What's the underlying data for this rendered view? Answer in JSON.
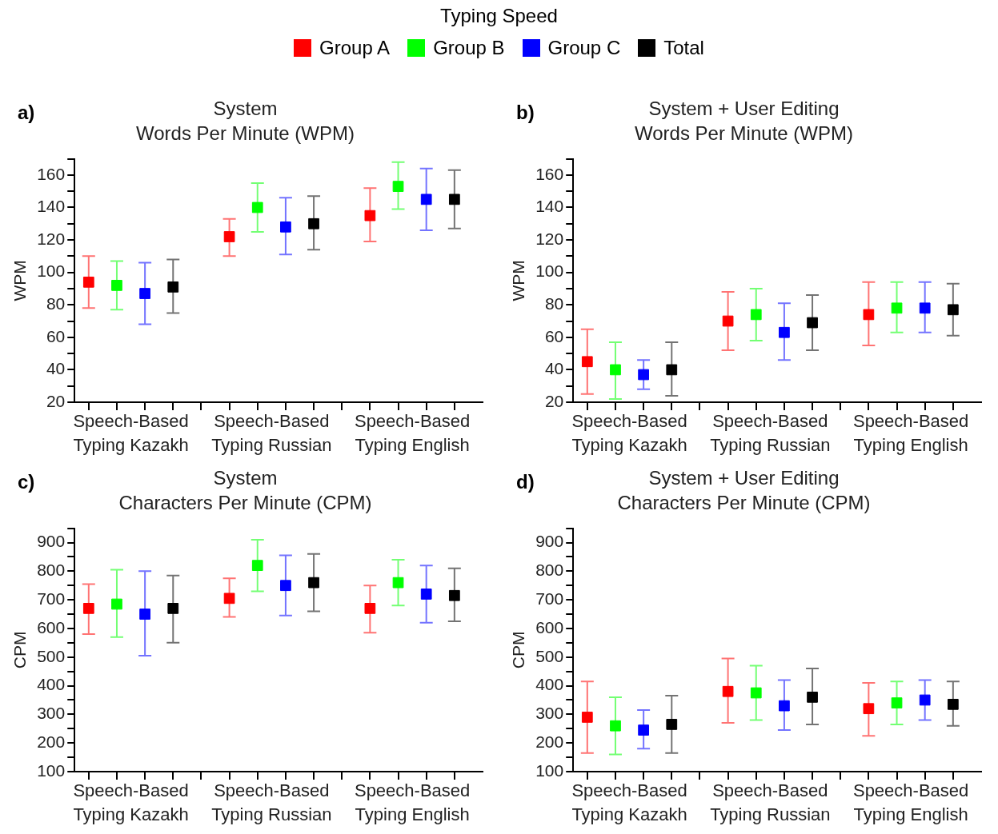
{
  "chart_data": [
    {
      "type": "scatter",
      "title": "System",
      "subtitle": "Words Per Minute (WPM)",
      "ylabel": "WPM",
      "annotations": [
        "Typing Speed",
        "a)"
      ],
      "legend": "top",
      "marker": "square",
      "grid": false,
      "categories": [
        "Speech-Based\nTyping Kazakh",
        "Speech-Based\nTyping Russian",
        "Speech-Based\nTyping English"
      ],
      "ylim": [
        20,
        170
      ],
      "yticks": [
        20,
        {
          "value": 30,
          "label": null
        },
        40,
        {
          "value": 50,
          "label": null
        },
        60,
        {
          "value": 70,
          "label": null
        },
        80,
        {
          "value": 90,
          "label": null
        },
        100,
        {
          "value": 110,
          "label": null
        },
        120,
        {
          "value": 130,
          "label": null
        },
        140,
        {
          "value": 150,
          "label": null
        },
        160,
        {
          "value": 170,
          "label": null
        }
      ],
      "series": [
        {
          "name": "Group A",
          "color": "#ff0000",
          "values": [
            94,
            122,
            135
          ],
          "errors": [
            [
              78,
              110
            ],
            [
              110,
              133
            ],
            [
              119,
              152
            ]
          ]
        },
        {
          "name": "Group B",
          "color": "#00ff00",
          "values": [
            92,
            140,
            153
          ],
          "errors": [
            [
              77,
              107
            ],
            [
              125,
              155
            ],
            [
              139,
              168
            ]
          ]
        },
        {
          "name": "Group C",
          "color": "#0000ff",
          "values": [
            87,
            128,
            145
          ],
          "errors": [
            [
              68,
              106
            ],
            [
              111,
              146
            ],
            [
              126,
              164
            ]
          ]
        },
        {
          "name": "Total",
          "color": "#000000",
          "values": [
            91,
            130,
            145
          ],
          "errors": [
            [
              75,
              108
            ],
            [
              114,
              147
            ],
            [
              127,
              163
            ]
          ]
        }
      ]
    },
    {
      "type": "scatter",
      "title": "System + User Editing",
      "subtitle": "Words Per Minute (WPM)",
      "ylabel": "WPM",
      "annotations": [
        "b)"
      ],
      "marker": "square",
      "grid": false,
      "categories": [
        "Speech-Based\nTyping Kazakh",
        "Speech-Based\nTyping Russian",
        "Speech-Based\nTyping English"
      ],
      "ylim": [
        20,
        170
      ],
      "yticks": [
        20,
        {
          "value": 30,
          "label": null
        },
        40,
        {
          "value": 50,
          "label": null
        },
        60,
        {
          "value": 70,
          "label": null
        },
        80,
        {
          "value": 90,
          "label": null
        },
        100,
        {
          "value": 110,
          "label": null
        },
        120,
        {
          "value": 130,
          "label": null
        },
        140,
        {
          "value": 150,
          "label": null
        },
        160,
        {
          "value": 170,
          "label": null
        }
      ],
      "series": [
        {
          "color": "#ff0000",
          "values": [
            45,
            70,
            74
          ],
          "errors": [
            [
              25,
              65
            ],
            [
              52,
              88
            ],
            [
              55,
              94
            ]
          ]
        },
        {
          "color": "#00ff00",
          "values": [
            40,
            74,
            78
          ],
          "errors": [
            [
              22,
              57
            ],
            [
              58,
              90
            ],
            [
              63,
              94
            ]
          ]
        },
        {
          "color": "#0000ff",
          "values": [
            37,
            63,
            78
          ],
          "errors": [
            [
              28,
              46
            ],
            [
              46,
              81
            ],
            [
              63,
              94
            ]
          ]
        },
        {
          "color": "#000000",
          "values": [
            40,
            69,
            77
          ],
          "errors": [
            [
              24,
              57
            ],
            [
              52,
              86
            ],
            [
              61,
              93
            ]
          ]
        }
      ]
    },
    {
      "type": "scatter",
      "title": "System",
      "subtitle": "Characters Per Minute (CPM)",
      "ylabel": "CPM",
      "annotations": [
        "c)"
      ],
      "marker": "square",
      "grid": false,
      "categories": [
        "Speech-Based\nTyping Kazakh",
        "Speech-Based\nTyping Russian",
        "Speech-Based\nTyping English"
      ],
      "ylim": [
        100,
        950
      ],
      "yticks": [
        100,
        {
          "value": 150,
          "label": null
        },
        200,
        {
          "value": 250,
          "label": null
        },
        300,
        {
          "value": 350,
          "label": null
        },
        400,
        {
          "value": 450,
          "label": null
        },
        500,
        {
          "value": 550,
          "label": null
        },
        600,
        {
          "value": 650,
          "label": null
        },
        700,
        {
          "value": 750,
          "label": null
        },
        800,
        {
          "value": 850,
          "label": null
        },
        900,
        {
          "value": 950,
          "label": null
        }
      ],
      "series": [
        {
          "color": "#ff0000",
          "values": [
            670,
            705,
            670
          ],
          "errors": [
            [
              580,
              755
            ],
            [
              640,
              775
            ],
            [
              585,
              750
            ]
          ]
        },
        {
          "color": "#00ff00",
          "values": [
            685,
            820,
            760
          ],
          "errors": [
            [
              570,
              805
            ],
            [
              730,
              910
            ],
            [
              680,
              840
            ]
          ]
        },
        {
          "color": "#0000ff",
          "values": [
            650,
            750,
            720
          ],
          "errors": [
            [
              505,
              800
            ],
            [
              645,
              855
            ],
            [
              620,
              820
            ]
          ]
        },
        {
          "color": "#000000",
          "values": [
            670,
            760,
            715
          ],
          "errors": [
            [
              550,
              785
            ],
            [
              660,
              860
            ],
            [
              625,
              810
            ]
          ]
        }
      ]
    },
    {
      "type": "scatter",
      "title": "System + User Editing",
      "subtitle": "Characters Per Minute (CPM)",
      "ylabel": "CPM",
      "annotations": [
        "d)"
      ],
      "marker": "square",
      "grid": false,
      "categories": [
        "Speech-Based\nTyping Kazakh",
        "Speech-Based\nTyping Russian",
        "Speech-Based\nTyping English"
      ],
      "ylim": [
        100,
        950
      ],
      "yticks": [
        100,
        {
          "value": 150,
          "label": null
        },
        200,
        {
          "value": 250,
          "label": null
        },
        300,
        {
          "value": 350,
          "label": null
        },
        400,
        {
          "value": 450,
          "label": null
        },
        500,
        {
          "value": 550,
          "label": null
        },
        600,
        {
          "value": 650,
          "label": null
        },
        700,
        {
          "value": 750,
          "label": null
        },
        800,
        {
          "value": 850,
          "label": null
        },
        900,
        {
          "value": 950,
          "label": null
        }
      ],
      "series": [
        {
          "color": "#ff0000",
          "values": [
            290,
            380,
            320
          ],
          "errors": [
            [
              165,
              415
            ],
            [
              270,
              495
            ],
            [
              225,
              410
            ]
          ]
        },
        {
          "color": "#00ff00",
          "values": [
            260,
            375,
            340
          ],
          "errors": [
            [
              160,
              360
            ],
            [
              280,
              470
            ],
            [
              265,
              415
            ]
          ]
        },
        {
          "color": "#0000ff",
          "values": [
            245,
            330,
            350
          ],
          "errors": [
            [
              180,
              315
            ],
            [
              245,
              420
            ],
            [
              280,
              420
            ]
          ]
        },
        {
          "color": "#000000",
          "values": [
            265,
            360,
            335
          ],
          "errors": [
            [
              165,
              365
            ],
            [
              265,
              460
            ],
            [
              260,
              415
            ]
          ]
        }
      ]
    }
  ]
}
